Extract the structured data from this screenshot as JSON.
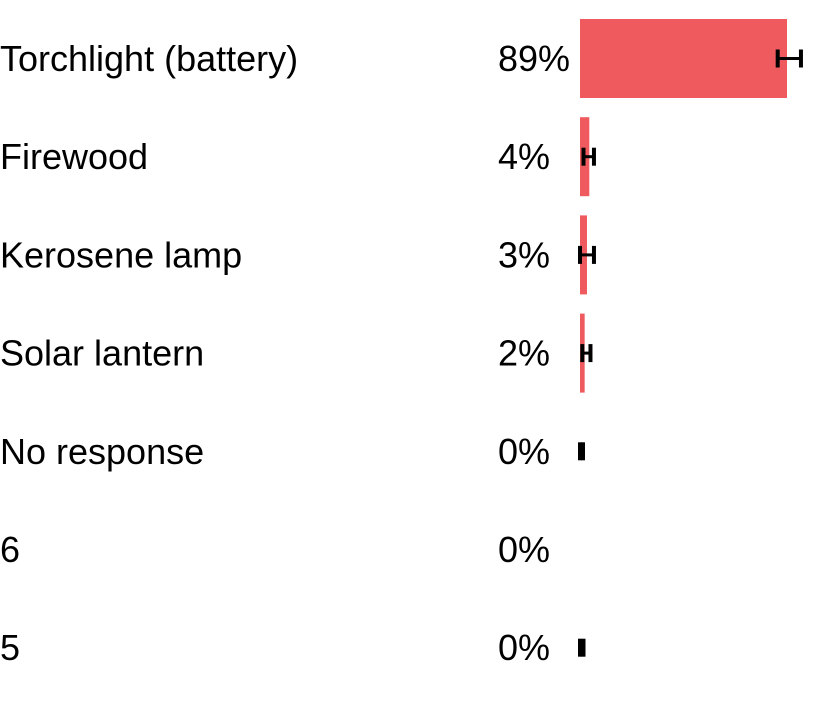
{
  "chart_data": {
    "type": "bar",
    "orientation": "horizontal",
    "categories": [
      "Torchlight (battery)",
      "Firewood",
      "Kerosene lamp",
      "Solar lantern",
      "No response",
      "6",
      "5"
    ],
    "values": [
      89,
      4,
      3,
      2,
      0,
      0,
      0
    ],
    "value_labels": [
      "89%",
      "4%",
      "3%",
      "2%",
      "0%",
      "0%",
      "0%"
    ],
    "error_bars": [
      [
        85,
        95
      ],
      [
        1.5,
        6
      ],
      [
        0,
        6
      ],
      [
        1,
        4.5
      ],
      [
        0,
        1
      ],
      null,
      [
        0,
        1.5
      ]
    ],
    "xlim": [
      0,
      100
    ],
    "grid": false,
    "legend": "none",
    "colors": {
      "bar": "#EF5A5E",
      "error_bar": "#000000",
      "text": "#000000"
    }
  }
}
